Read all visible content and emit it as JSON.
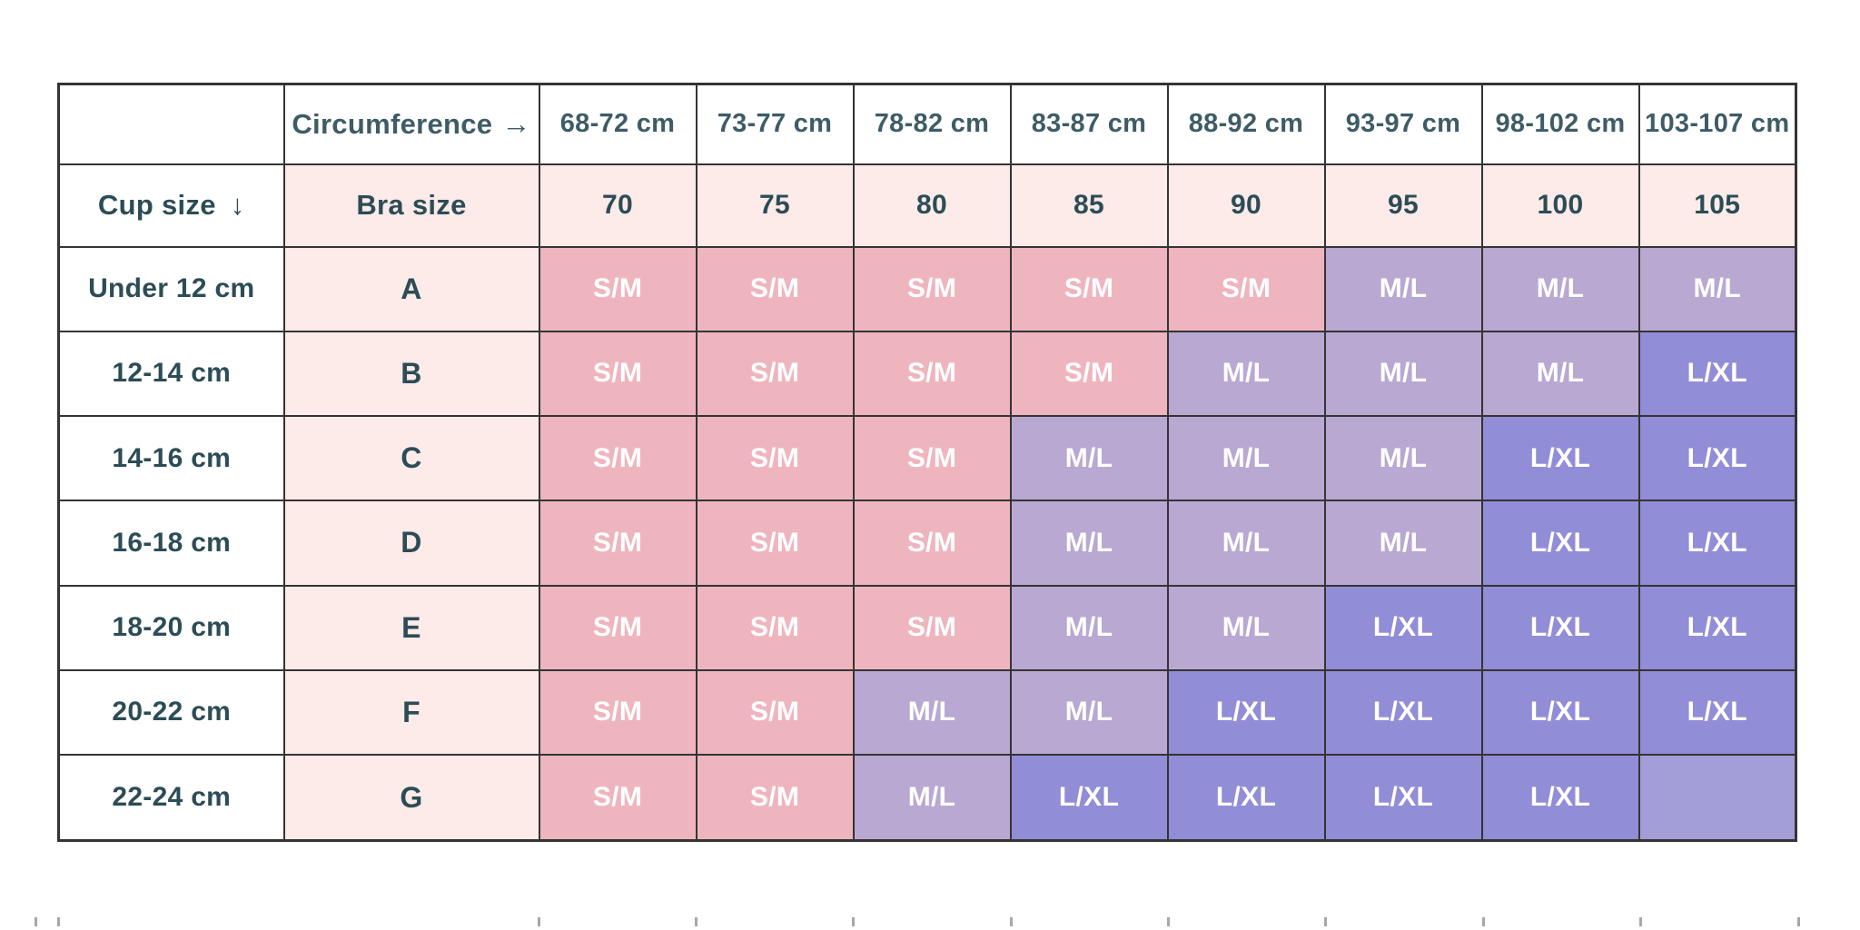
{
  "page": {
    "background": "#ffffff"
  },
  "table": {
    "circumference_label": "Circumference",
    "arrow_right": "→",
    "cup_size_label": "Cup size",
    "arrow_down": "↓",
    "bra_size_label": "Bra size",
    "circumference_ranges": [
      "68-72 cm",
      "73-77 cm",
      "78-82 cm",
      "83-87 cm",
      "88-92 cm",
      "93-97 cm",
      "98-102 cm",
      "103-107 cm"
    ],
    "bra_sizes": [
      "70",
      "75",
      "80",
      "85",
      "90",
      "95",
      "100",
      "105"
    ],
    "rows": [
      {
        "cup_range": "Under 12 cm",
        "letter": "A",
        "cells": [
          "S/M",
          "S/M",
          "S/M",
          "S/M",
          "S/M",
          "M/L",
          "M/L",
          "M/L"
        ],
        "cell_types": [
          "sm",
          "sm",
          "sm",
          "sm",
          "sm",
          "ml",
          "ml",
          "ml"
        ]
      },
      {
        "cup_range": "12-14 cm",
        "letter": "B",
        "cells": [
          "S/M",
          "S/M",
          "S/M",
          "S/M",
          "M/L",
          "M/L",
          "M/L",
          "L/XL"
        ],
        "cell_types": [
          "sm",
          "sm",
          "sm",
          "sm",
          "ml",
          "ml",
          "ml",
          "lxl"
        ]
      },
      {
        "cup_range": "14-16 cm",
        "letter": "C",
        "cells": [
          "S/M",
          "S/M",
          "S/M",
          "M/L",
          "M/L",
          "M/L",
          "L/XL",
          "L/XL"
        ],
        "cell_types": [
          "sm",
          "sm",
          "sm",
          "ml",
          "ml",
          "ml",
          "lxl",
          "lxl"
        ]
      },
      {
        "cup_range": "16-18 cm",
        "letter": "D",
        "cells": [
          "S/M",
          "S/M",
          "S/M",
          "M/L",
          "M/L",
          "M/L",
          "L/XL",
          "L/XL"
        ],
        "cell_types": [
          "sm",
          "sm",
          "sm",
          "ml",
          "ml",
          "ml",
          "lxl",
          "lxl"
        ]
      },
      {
        "cup_range": "18-20 cm",
        "letter": "E",
        "cells": [
          "S/M",
          "S/M",
          "S/M",
          "M/L",
          "M/L",
          "L/XL",
          "L/XL",
          "L/XL"
        ],
        "cell_types": [
          "sm",
          "sm",
          "sm",
          "ml",
          "ml",
          "lxl",
          "lxl",
          "lxl"
        ]
      },
      {
        "cup_range": "20-22 cm",
        "letter": "F",
        "cells": [
          "S/M",
          "S/M",
          "M/L",
          "M/L",
          "L/XL",
          "L/XL",
          "L/XL",
          "L/XL"
        ],
        "cell_types": [
          "sm",
          "sm",
          "ml",
          "ml",
          "lxl",
          "lxl",
          "lxl",
          "lxl"
        ]
      },
      {
        "cup_range": "22-24 cm",
        "letter": "G",
        "cells": [
          "S/M",
          "S/M",
          "M/L",
          "L/XL",
          "L/XL",
          "L/XL",
          "L/XL",
          ""
        ],
        "cell_types": [
          "sm",
          "sm",
          "ml",
          "lxl",
          "lxl",
          "lxl",
          "lxl",
          "empty"
        ]
      }
    ],
    "colors": {
      "sm": "#efb5be",
      "ml": "#b9a8d2",
      "lxl": "#918dd6",
      "empty": "#a39dd8",
      "light_pink": "#fcebe9",
      "header_text": "#3e5c66",
      "value_text": "#2c4c56",
      "cell_text": "#ffffff",
      "border": "#343434"
    }
  },
  "chart_data": {
    "type": "table",
    "header_rows": [
      [
        "",
        "Circumference →",
        "68-72 cm",
        "73-77 cm",
        "78-82 cm",
        "83-87 cm",
        "88-92 cm",
        "93-97 cm",
        "98-102 cm",
        "103-107 cm"
      ],
      [
        "Cup size ↓",
        "Bra size",
        "70",
        "75",
        "80",
        "85",
        "90",
        "95",
        "100",
        "105"
      ]
    ],
    "rows": [
      [
        "Under 12 cm",
        "A",
        "S/M",
        "S/M",
        "S/M",
        "S/M",
        "S/M",
        "M/L",
        "M/L",
        "M/L"
      ],
      [
        "12-14 cm",
        "B",
        "S/M",
        "S/M",
        "S/M",
        "S/M",
        "M/L",
        "M/L",
        "M/L",
        "L/XL"
      ],
      [
        "14-16 cm",
        "C",
        "S/M",
        "S/M",
        "S/M",
        "M/L",
        "M/L",
        "M/L",
        "L/XL",
        "L/XL"
      ],
      [
        "16-18 cm",
        "D",
        "S/M",
        "S/M",
        "S/M",
        "M/L",
        "M/L",
        "M/L",
        "L/XL",
        "L/XL"
      ],
      [
        "18-20 cm",
        "E",
        "S/M",
        "S/M",
        "S/M",
        "M/L",
        "M/L",
        "L/XL",
        "L/XL",
        "L/XL"
      ],
      [
        "20-22 cm",
        "F",
        "S/M",
        "S/M",
        "M/L",
        "M/L",
        "L/XL",
        "L/XL",
        "L/XL",
        "L/XL"
      ],
      [
        "22-24 cm",
        "G",
        "S/M",
        "S/M",
        "M/L",
        "L/XL",
        "L/XL",
        "L/XL",
        "L/XL",
        ""
      ]
    ],
    "legend": {
      "S/M": "#efb5be",
      "M/L": "#b9a8d2",
      "L/XL": "#918dd6"
    },
    "grid": "on"
  },
  "artifacts": {
    "bottom_tick_xs": [
      38,
      63,
      592,
      765,
      938,
      1112,
      1285,
      1458,
      1632,
      1805,
      1979
    ]
  }
}
